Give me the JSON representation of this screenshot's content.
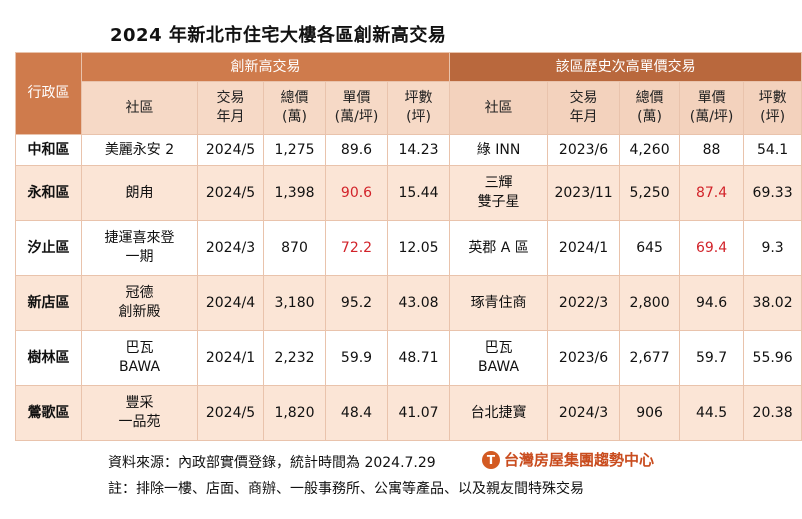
{
  "title": "2024 年新北市住宅大樓各區創新高交易",
  "header": {
    "district_label": "行政區",
    "section_new_high": "創新高交易",
    "section_history": "該區歷史次高單價交易",
    "columns": [
      {
        "line1": "社區",
        "line2": ""
      },
      {
        "line1": "交易",
        "line2": "年月"
      },
      {
        "line1": "總價",
        "line2": "(萬)"
      },
      {
        "line1": "單價",
        "line2": "(萬/坪)"
      },
      {
        "line1": "坪數",
        "line2": "(坪)"
      }
    ]
  },
  "rows": [
    {
      "district": "中和區",
      "new": {
        "community": [
          "美麗永安 2"
        ],
        "date": "2024/5",
        "total": "1,275",
        "unit": "89.6",
        "unit_red": false,
        "area": "14.23"
      },
      "hist": {
        "community": [
          "綠 INN"
        ],
        "date": "2023/6",
        "total": "4,260",
        "unit": "88",
        "unit_red": false,
        "area": "54.1"
      }
    },
    {
      "district": "永和區",
      "new": {
        "community": [
          "朗甪"
        ],
        "date": "2024/5",
        "total": "1,398",
        "unit": "90.6",
        "unit_red": true,
        "area": "15.44"
      },
      "hist": {
        "community": [
          "三輝",
          "雙子星"
        ],
        "date": "2023/11",
        "total": "5,250",
        "unit": "87.4",
        "unit_red": true,
        "area": "69.33"
      }
    },
    {
      "district": "汐止區",
      "new": {
        "community": [
          "捷運喜來登",
          "一期"
        ],
        "date": "2024/3",
        "total": "870",
        "unit": "72.2",
        "unit_red": true,
        "area": "12.05"
      },
      "hist": {
        "community": [
          "英郡 A 區"
        ],
        "date": "2024/1",
        "total": "645",
        "unit": "69.4",
        "unit_red": true,
        "area": "9.3"
      }
    },
    {
      "district": "新店區",
      "new": {
        "community": [
          "冠德",
          "創新殿"
        ],
        "date": "2024/4",
        "total": "3,180",
        "unit": "95.2",
        "unit_red": false,
        "area": "43.08"
      },
      "hist": {
        "community": [
          "琢青住商"
        ],
        "date": "2022/3",
        "total": "2,800",
        "unit": "94.6",
        "unit_red": false,
        "area": "38.02"
      }
    },
    {
      "district": "樹林區",
      "new": {
        "community": [
          "巴瓦",
          "BAWA"
        ],
        "date": "2024/1",
        "total": "2,232",
        "unit": "59.9",
        "unit_red": false,
        "area": "48.71"
      },
      "hist": {
        "community": [
          "巴瓦",
          "BAWA"
        ],
        "date": "2023/6",
        "total": "2,677",
        "unit": "59.7",
        "unit_red": false,
        "area": "55.96"
      }
    },
    {
      "district": "鶯歌區",
      "new": {
        "community": [
          "豐采",
          "一品苑"
        ],
        "date": "2024/5",
        "total": "1,820",
        "unit": "48.4",
        "unit_red": false,
        "area": "41.07"
      },
      "hist": {
        "community": [
          "台北捷寶"
        ],
        "date": "2024/3",
        "total": "906",
        "unit": "44.5",
        "unit_red": false,
        "area": "20.38"
      }
    }
  ],
  "footer": {
    "source": "資料來源：內政部實價登錄，統計時間為 2024.7.29",
    "brand": "台灣房屋集團趨勢中心",
    "brand_logo_glyph": "T",
    "note": "註：排除一樓、店面、商辦、一般事務所、公寓等產品、以及親友間特殊交易"
  },
  "colors": {
    "header_primary": "#cf7b4c",
    "header_secondary": "#b9683d",
    "subheader": "#f6d9c6",
    "row_alt": "#fbe5d6",
    "highlight_red": "#d2232a",
    "brand": "#c94c1e"
  }
}
